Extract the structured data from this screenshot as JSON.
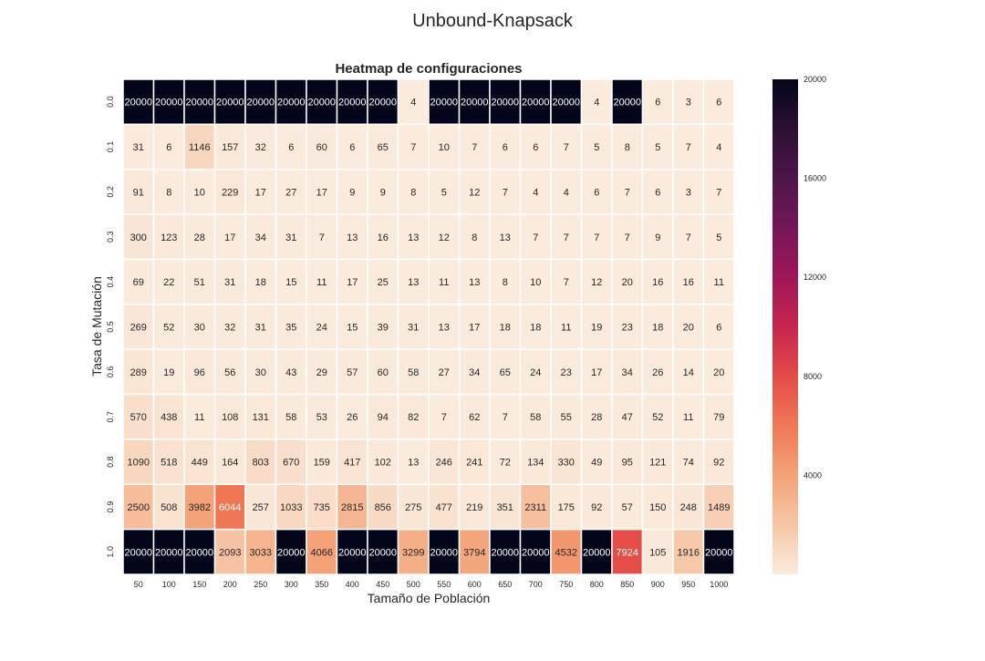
{
  "figure": {
    "suptitle": "Unbound-Knapsack"
  },
  "chart_data": {
    "type": "heatmap",
    "title": "Heatmap de configuraciones",
    "xlabel": "Tamaño de Población",
    "ylabel": "Tasa de Mutación",
    "x": [
      "50",
      "100",
      "150",
      "200",
      "250",
      "300",
      "350",
      "400",
      "450",
      "500",
      "550",
      "600",
      "650",
      "700",
      "750",
      "800",
      "850",
      "900",
      "950",
      "1000"
    ],
    "y": [
      "0.0",
      "0.1",
      "0.2",
      "0.3",
      "0.4",
      "0.5",
      "0.6",
      "0.7",
      "0.8",
      "0.9",
      "1.0"
    ],
    "values": [
      [
        20000,
        20000,
        20000,
        20000,
        20000,
        20000,
        20000,
        20000,
        20000,
        4,
        20000,
        20000,
        20000,
        20000,
        20000,
        4,
        20000,
        6,
        3,
        6
      ],
      [
        31,
        6,
        1146,
        157,
        32,
        6,
        60,
        6,
        65,
        7,
        10,
        7,
        6,
        6,
        7,
        5,
        8,
        5,
        7,
        4
      ],
      [
        91,
        8,
        10,
        229,
        17,
        27,
        17,
        9,
        9,
        8,
        5,
        12,
        7,
        4,
        4,
        6,
        7,
        6,
        3,
        7
      ],
      [
        300,
        123,
        28,
        17,
        34,
        31,
        7,
        13,
        16,
        13,
        12,
        8,
        13,
        7,
        7,
        7,
        7,
        9,
        7,
        5
      ],
      [
        69,
        22,
        51,
        31,
        18,
        15,
        11,
        17,
        25,
        13,
        11,
        13,
        8,
        10,
        7,
        12,
        20,
        16,
        16,
        11
      ],
      [
        269,
        52,
        30,
        32,
        31,
        35,
        24,
        15,
        39,
        31,
        13,
        17,
        18,
        18,
        11,
        19,
        23,
        18,
        20,
        6
      ],
      [
        289,
        19,
        96,
        56,
        30,
        43,
        29,
        57,
        60,
        58,
        27,
        34,
        65,
        24,
        23,
        17,
        34,
        26,
        14,
        20
      ],
      [
        570,
        438,
        11,
        108,
        131,
        58,
        53,
        26,
        94,
        82,
        7,
        62,
        7,
        58,
        55,
        28,
        47,
        52,
        11,
        79
      ],
      [
        1090,
        518,
        449,
        164,
        803,
        670,
        159,
        417,
        102,
        13,
        246,
        241,
        72,
        134,
        330,
        49,
        95,
        121,
        74,
        92
      ],
      [
        2500,
        508,
        3982,
        6044,
        257,
        1033,
        735,
        2815,
        856,
        275,
        477,
        219,
        351,
        2311,
        175,
        92,
        57,
        150,
        248,
        1489
      ],
      [
        20000,
        20000,
        20000,
        2093,
        3033,
        20000,
        4066,
        20000,
        20000,
        3299,
        20000,
        3794,
        20000,
        20000,
        4532,
        20000,
        7924,
        105,
        1916,
        20000
      ]
    ],
    "colorbar": {
      "min": 0,
      "max": 20000,
      "ticks": [
        "4000",
        "8000",
        "12000",
        "16000",
        "20000"
      ],
      "colormap": "rocket_r"
    }
  }
}
